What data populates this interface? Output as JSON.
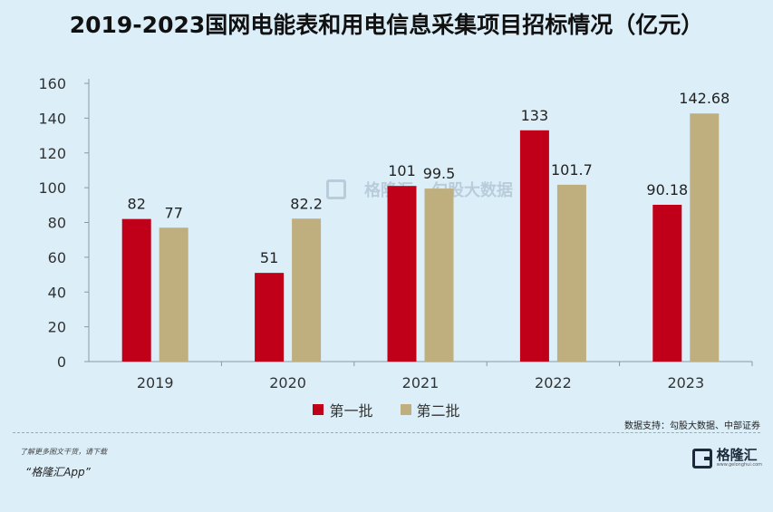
{
  "title": "2019-2023国网电能表和用电信息采集项目招标情况（亿元）",
  "source": "数据支持：勾股大数据、中部证券",
  "footer": {
    "note": "了解更多图文干货，请下载",
    "app": "“格隆汇App”"
  },
  "logo": {
    "name": "格隆汇",
    "url": "www.gelonghui.com"
  },
  "watermark": {
    "left": "格隆汇",
    "right": "勾股大数据"
  },
  "colors": {
    "series1": "#c00018",
    "series2": "#bfae7e",
    "background": "#dceff9",
    "axis": "#8a98a4"
  },
  "chart_data": {
    "type": "bar",
    "categories": [
      "2019",
      "2020",
      "2021",
      "2022",
      "2023"
    ],
    "series": [
      {
        "name": "第一批",
        "values": [
          82,
          51,
          101,
          133,
          90.18
        ],
        "labels": [
          "82",
          "51",
          "101",
          "133",
          "90.18"
        ]
      },
      {
        "name": "第二批",
        "values": [
          77,
          82.2,
          99.5,
          101.7,
          142.68
        ],
        "labels": [
          "77",
          "82.2",
          "99.5",
          "101.7",
          "142.68"
        ]
      }
    ],
    "ylim": [
      0,
      160
    ],
    "yticks": [
      0,
      20,
      40,
      60,
      80,
      100,
      120,
      140,
      160
    ],
    "grid": false,
    "legend": "bottom"
  }
}
